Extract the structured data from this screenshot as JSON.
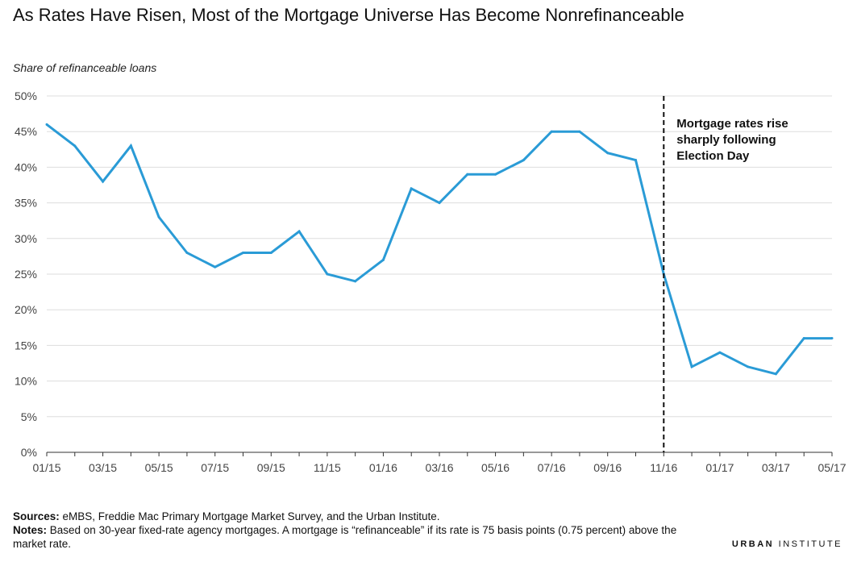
{
  "title": "As Rates Have Risen, Most of the Mortgage Universe Has Become Nonrefinanceable",
  "y_axis_label": "Share of refinanceable loans",
  "sources_label": "Sources:",
  "sources_text": " eMBS, Freddie Mac Primary Mortgage Market Survey, and the Urban Institute.",
  "notes_label": "Notes:",
  "notes_text": " Based on 30-year fixed-rate agency mortgages. A mortgage is “refinanceable” if its rate is 75 basis points (0.75 percent) above the market rate.",
  "logo_bold": "URBAN",
  "logo_rest": " INSTITUTE",
  "colors": {
    "line": "#2a9bd6",
    "grid": "#dddddd",
    "axis": "#333333"
  },
  "chart_data": {
    "type": "line",
    "title": "As Rates Have Risen, Most of the Mortgage Universe Has Become Nonrefinanceable",
    "ylabel": "Share of refinanceable loans",
    "xlabel": "",
    "ylim": [
      0,
      50
    ],
    "yticks": [
      "0%",
      "5%",
      "10%",
      "15%",
      "20%",
      "25%",
      "30%",
      "35%",
      "40%",
      "45%",
      "50%"
    ],
    "ytick_values": [
      0,
      5,
      10,
      15,
      20,
      25,
      30,
      35,
      40,
      45,
      50
    ],
    "x": [
      "01/15",
      "02/15",
      "03/15",
      "04/15",
      "05/15",
      "06/15",
      "07/15",
      "08/15",
      "09/15",
      "10/15",
      "11/15",
      "12/15",
      "01/16",
      "02/16",
      "03/16",
      "04/16",
      "05/16",
      "06/16",
      "07/16",
      "08/16",
      "09/16",
      "10/16",
      "11/16",
      "12/16",
      "01/17",
      "02/17",
      "03/17",
      "04/17",
      "05/17"
    ],
    "xtick_labels": [
      "01/15",
      "03/15",
      "05/15",
      "07/15",
      "09/15",
      "11/15",
      "01/16",
      "03/16",
      "05/16",
      "07/16",
      "09/16",
      "11/16",
      "01/17",
      "03/17",
      "05/17"
    ],
    "series": [
      {
        "values": [
          46,
          43,
          38,
          43,
          33,
          28,
          26,
          28,
          28,
          31,
          25,
          24,
          27,
          37,
          35,
          39,
          39,
          41,
          45,
          45,
          42,
          41,
          25,
          12,
          14,
          12,
          11,
          16,
          16
        ]
      }
    ],
    "annotation": {
      "x": "11/16",
      "lines": [
        "Mortgage rates rise",
        "sharply following",
        "Election Day"
      ]
    },
    "grid": true,
    "legend": "none"
  }
}
